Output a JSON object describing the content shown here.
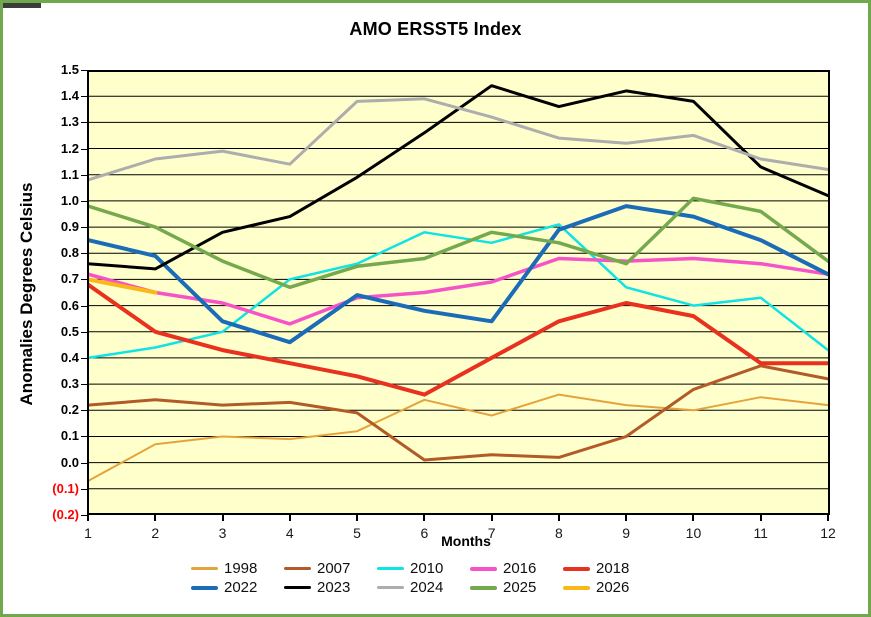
{
  "title": "AMO ERSST5 Index",
  "window": {
    "border_color": "#6FA84D",
    "background_color": "#FFFFFF"
  },
  "chart_data": {
    "type": "line",
    "title": "AMO ERSST5 Index",
    "xlabel": "Months",
    "ylabel": "Anomalies Degrees Celsius",
    "plot_background": "#FFFFCC",
    "gridline_color": "#000000",
    "grid": "horizontal, every 0.1",
    "legend_position": "bottom",
    "ylim": [
      -0.2,
      1.5
    ],
    "negative_tick_color": "#FF0000",
    "y_tick_labels": [
      "1.5",
      "1.4",
      "1.3",
      "1.2",
      "1.1",
      "1.0",
      "0.9",
      "0.8",
      "0.7",
      "0.6",
      "0.5",
      "0.4",
      "0.3",
      "0.2",
      "0.1",
      "0.0",
      "(0.1)",
      "(0.2)"
    ],
    "y_tick_values": [
      1.5,
      1.4,
      1.3,
      1.2,
      1.1,
      1.0,
      0.9,
      0.8,
      0.7,
      0.6,
      0.5,
      0.4,
      0.3,
      0.2,
      0.1,
      0.0,
      -0.1,
      -0.2
    ],
    "x": [
      1,
      2,
      3,
      4,
      5,
      6,
      7,
      8,
      9,
      10,
      11,
      12
    ],
    "x_tick_labels": [
      "1",
      "2",
      "3",
      "4",
      "5",
      "6",
      "7",
      "8",
      "9",
      "10",
      "11",
      "12"
    ],
    "series": [
      {
        "name": "1998",
        "color": "#E5A33C",
        "width": 2,
        "values": [
          -0.07,
          0.07,
          0.1,
          0.09,
          0.12,
          0.24,
          0.18,
          0.26,
          0.22,
          0.2,
          0.25,
          0.22
        ]
      },
      {
        "name": "2007",
        "color": "#B25B28",
        "width": 3,
        "values": [
          0.22,
          0.24,
          0.22,
          0.23,
          0.19,
          0.01,
          0.03,
          0.02,
          0.1,
          0.28,
          0.37,
          0.32
        ]
      },
      {
        "name": "2010",
        "color": "#0FE3E3",
        "width": 2.5,
        "values": [
          0.4,
          0.44,
          0.5,
          0.7,
          0.76,
          0.88,
          0.84,
          0.91,
          0.67,
          0.6,
          0.63,
          0.43
        ]
      },
      {
        "name": "2016",
        "color": "#F653C8",
        "width": 3.5,
        "values": [
          0.72,
          0.65,
          0.61,
          0.53,
          0.63,
          0.65,
          0.69,
          0.78,
          0.77,
          0.78,
          0.76,
          0.72
        ]
      },
      {
        "name": "2018",
        "color": "#E8311E",
        "width": 4,
        "values": [
          0.68,
          0.5,
          0.43,
          0.38,
          0.33,
          0.26,
          0.4,
          0.54,
          0.61,
          0.56,
          0.38,
          0.38
        ]
      },
      {
        "name": "2022",
        "color": "#1B6CB8",
        "width": 4,
        "values": [
          0.85,
          0.79,
          0.54,
          0.46,
          0.64,
          0.58,
          0.54,
          0.89,
          0.98,
          0.94,
          0.85,
          0.72
        ]
      },
      {
        "name": "2023",
        "color": "#000000",
        "width": 3,
        "values": [
          0.76,
          0.74,
          0.88,
          0.94,
          1.09,
          1.26,
          1.44,
          1.36,
          1.42,
          1.38,
          1.13,
          1.02
        ]
      },
      {
        "name": "2024",
        "color": "#ADADAD",
        "width": 3,
        "values": [
          1.08,
          1.16,
          1.19,
          1.14,
          1.38,
          1.39,
          1.32,
          1.24,
          1.22,
          1.25,
          1.16,
          1.12
        ]
      },
      {
        "name": "2025",
        "color": "#74A94D",
        "width": 3.5,
        "values": [
          0.98,
          0.9,
          0.77,
          0.67,
          0.75,
          0.78,
          0.88,
          0.84,
          0.76,
          1.01,
          0.96,
          0.77
        ]
      },
      {
        "name": "2026",
        "color": "#FBB917",
        "width": 4,
        "values": [
          0.7,
          0.65
        ]
      }
    ]
  }
}
